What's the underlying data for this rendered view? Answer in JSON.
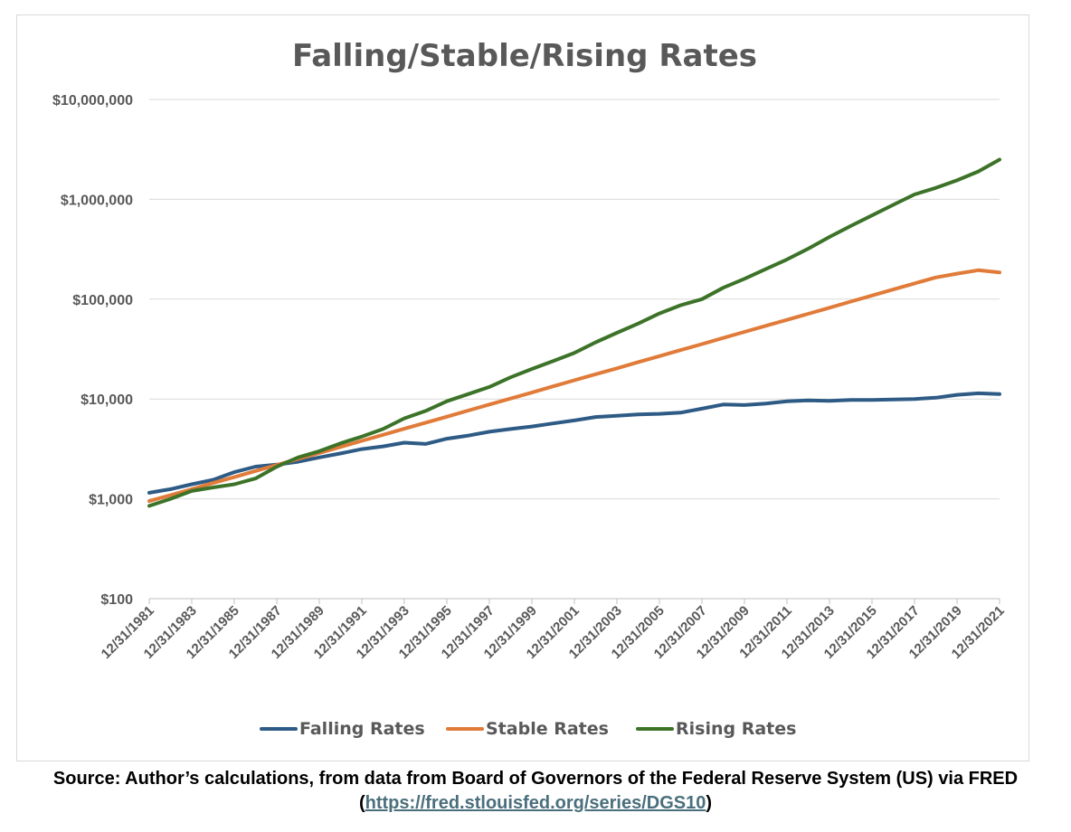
{
  "chart_data": {
    "type": "line",
    "title": "Falling/Stable/Rising Rates",
    "xlabel": "",
    "ylabel": "",
    "y_scale": "log",
    "ylim": [
      100,
      10000000
    ],
    "y_ticks": [
      100,
      1000,
      10000,
      100000,
      1000000,
      10000000
    ],
    "y_tick_labels": [
      "$100",
      "$1,000",
      "$10,000",
      "$100,000",
      "$1,000,000",
      "$10,000,000"
    ],
    "x_tick_labels": [
      "12/31/1981",
      "12/31/1983",
      "12/31/1985",
      "12/31/1987",
      "12/31/1989",
      "12/31/1991",
      "12/31/1993",
      "12/31/1995",
      "12/31/1997",
      "12/31/1999",
      "12/31/2001",
      "12/31/2003",
      "12/31/2005",
      "12/31/2007",
      "12/31/2009",
      "12/31/2011",
      "12/31/2013",
      "12/31/2015",
      "12/31/2017",
      "12/31/2019",
      "12/31/2021"
    ],
    "x": [
      1981,
      1982,
      1983,
      1984,
      1985,
      1986,
      1987,
      1988,
      1989,
      1990,
      1991,
      1992,
      1993,
      1994,
      1995,
      1996,
      1997,
      1998,
      1999,
      2000,
      2001,
      2002,
      2003,
      2004,
      2005,
      2006,
      2007,
      2008,
      2009,
      2010,
      2011,
      2012,
      2013,
      2014,
      2015,
      2016,
      2017,
      2018,
      2019,
      2020,
      2021
    ],
    "xlim": [
      1981,
      2021
    ],
    "grid": "horizontal",
    "legend_position": "bottom",
    "series": [
      {
        "name": "Falling Rates",
        "color": "#2e5b85",
        "values": [
          1150,
          1250,
          1400,
          1550,
          1850,
          2100,
          2200,
          2350,
          2600,
          2850,
          3150,
          3350,
          3650,
          3550,
          4000,
          4300,
          4700,
          5000,
          5300,
          5700,
          6100,
          6600,
          6800,
          7000,
          7100,
          7300,
          8000,
          8800,
          8700,
          9000,
          9500,
          9700,
          9600,
          9800,
          9800,
          9900,
          10000,
          10300,
          11000,
          11400,
          11200
        ]
      },
      {
        "name": "Stable Rates",
        "color": "#e07b39",
        "values": [
          950,
          1090,
          1250,
          1440,
          1650,
          1900,
          2180,
          2510,
          2880,
          3310,
          3810,
          4380,
          5030,
          5790,
          6650,
          7650,
          8800,
          10100,
          11600,
          13400,
          15400,
          17700,
          20300,
          23400,
          26900,
          30900,
          35500,
          40900,
          47000,
          54000,
          62000,
          71400,
          82000,
          94500,
          108600,
          125000,
          143700,
          165000,
          180000,
          195000,
          185000
        ]
      },
      {
        "name": "Rising Rates",
        "color": "#3c7328",
        "values": [
          850,
          1000,
          1200,
          1300,
          1400,
          1600,
          2100,
          2600,
          3000,
          3600,
          4200,
          5000,
          6400,
          7600,
          9500,
          11200,
          13200,
          16500,
          20000,
          24000,
          29000,
          37000,
          46000,
          57000,
          72000,
          87000,
          100000,
          130000,
          160000,
          200000,
          250000,
          320000,
          420000,
          540000,
          690000,
          880000,
          1120000,
          1300000,
          1550000,
          1900000,
          2500000
        ]
      }
    ]
  },
  "footer": {
    "source_text": "Source: Author’s calculations, from data from Board of Governors of the Federal Reserve System (US) via FRED (",
    "source_link": "https://fred.stlouisfed.org/series/DGS10",
    "source_close": ")"
  }
}
